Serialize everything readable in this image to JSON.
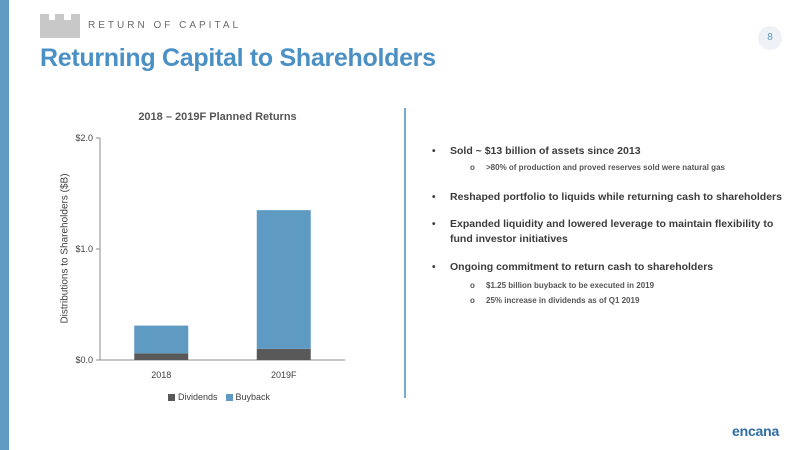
{
  "header": {
    "section_label": "RETURN OF CAPITAL",
    "title": "Returning Capital to Shareholders",
    "page_number": "8"
  },
  "chart_data": {
    "type": "bar",
    "stacked": true,
    "title": "2018 – 2019F Planned Returns",
    "xlabel": "",
    "ylabel": "Distributions to Shareholders ($B)",
    "categories": [
      "2018",
      "2019F"
    ],
    "series": [
      {
        "name": "Dividends",
        "values": [
          0.06,
          0.1
        ],
        "color": "#595959"
      },
      {
        "name": "Buyback",
        "values": [
          0.25,
          1.25
        ],
        "color": "#5f9ac3"
      }
    ],
    "ylim": [
      0,
      2.0
    ],
    "yticks": [
      0,
      1.0,
      2.0
    ],
    "ytick_labels": [
      "$0.0",
      "$1.0",
      "$2.0"
    ],
    "grid": false,
    "legend": "bottom"
  },
  "bullets": [
    {
      "text": "Sold ~ $13 billion of assets since 2013",
      "subs": [
        ">80% of production and proved reserves sold were natural gas"
      ]
    },
    {
      "text": "Reshaped portfolio to liquids while returning cash to shareholders",
      "subs": []
    },
    {
      "text": "Expanded liquidity and lowered leverage to maintain flexibility to fund investor initiatives",
      "subs": []
    },
    {
      "text": "Ongoing commitment to return cash to shareholders",
      "subs": [
        "$1.25 billion buyback to be executed in 2019",
        "25% increase in dividends as of Q1 2019"
      ]
    }
  ],
  "logo": {
    "text": "encana"
  },
  "colors": {
    "accent": "#5f9ac3",
    "title": "#4a90c4",
    "dark_bar": "#595959"
  }
}
